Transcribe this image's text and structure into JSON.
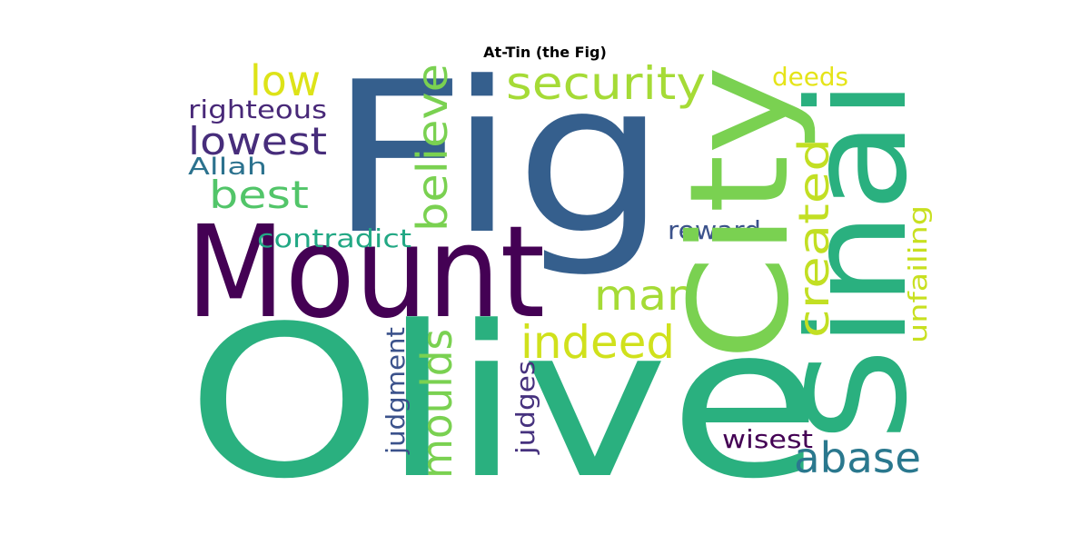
{
  "title": "At-Tin (the Fig)",
  "words": [
    {
      "text": "Olive",
      "color": "#2ab07f"
    },
    {
      "text": "Fig",
      "color": "#355f8d"
    },
    {
      "text": "Mount",
      "color": "#440154"
    },
    {
      "text": "Sinai",
      "color": "#2ab07f"
    },
    {
      "text": "City",
      "color": "#7ad151"
    },
    {
      "text": "security",
      "color": "#a5db36"
    },
    {
      "text": "low",
      "color": "#dde318"
    },
    {
      "text": "believe",
      "color": "#7ad151"
    },
    {
      "text": "righteous",
      "color": "#482878"
    },
    {
      "text": "lowest",
      "color": "#472d7b"
    },
    {
      "text": "Allah",
      "color": "#2c728e"
    },
    {
      "text": "best",
      "color": "#52c569"
    },
    {
      "text": "contradict",
      "color": "#22a884"
    },
    {
      "text": "man",
      "color": "#a5db36"
    },
    {
      "text": "indeed",
      "color": "#d0e11c"
    },
    {
      "text": "created",
      "color": "#c2df23"
    },
    {
      "text": "deeds",
      "color": "#e5e419"
    },
    {
      "text": "reward",
      "color": "#3b528b"
    },
    {
      "text": "unfailing",
      "color": "#c8e020"
    },
    {
      "text": "judgment",
      "color": "#3b528b"
    },
    {
      "text": "moulds",
      "color": "#7ad151"
    },
    {
      "text": "judges",
      "color": "#46327e"
    },
    {
      "text": "wisest",
      "color": "#440154"
    },
    {
      "text": "abase",
      "color": "#2a788e"
    }
  ]
}
